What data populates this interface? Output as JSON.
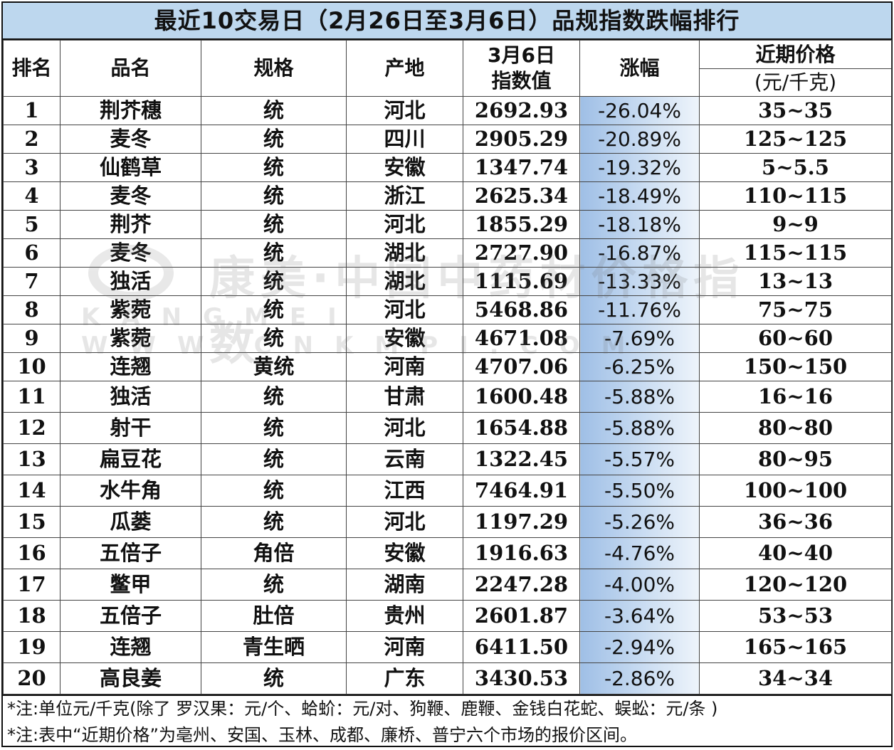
{
  "title": "最近10交易日（2月26日至3月6日）品规指数跌幅排行",
  "headers": {
    "rank": "排名",
    "name": "品名",
    "spec": "规格",
    "origin": "产地",
    "index_line1": "3月6日",
    "index_line2": "指数值",
    "change": "涨幅",
    "price_line1": "近期价格",
    "price_line2": "(元/千克)"
  },
  "rows": [
    {
      "rank": "1",
      "name": "荆芥穗",
      "spec": "统",
      "origin": "河北",
      "index": "2692.93",
      "change": "-26.04%",
      "price": "35~35"
    },
    {
      "rank": "2",
      "name": "麦冬",
      "spec": "统",
      "origin": "四川",
      "index": "2905.29",
      "change": "-20.89%",
      "price": "125~125"
    },
    {
      "rank": "3",
      "name": "仙鹤草",
      "spec": "统",
      "origin": "安徽",
      "index": "1347.74",
      "change": "-19.32%",
      "price": "5~5.5"
    },
    {
      "rank": "4",
      "name": "麦冬",
      "spec": "统",
      "origin": "浙江",
      "index": "2625.34",
      "change": "-18.49%",
      "price": "110~115"
    },
    {
      "rank": "5",
      "name": "荆芥",
      "spec": "统",
      "origin": "河北",
      "index": "1855.29",
      "change": "-18.18%",
      "price": "9~9"
    },
    {
      "rank": "6",
      "name": "麦冬",
      "spec": "统",
      "origin": "湖北",
      "index": "2727.90",
      "change": "-16.87%",
      "price": "115~115"
    },
    {
      "rank": "7",
      "name": "独活",
      "spec": "统",
      "origin": "湖北",
      "index": "1115.69",
      "change": "-13.33%",
      "price": "13~13"
    },
    {
      "rank": "8",
      "name": "紫菀",
      "spec": "统",
      "origin": "河北",
      "index": "5468.86",
      "change": "-11.76%",
      "price": "75~75"
    },
    {
      "rank": "9",
      "name": "紫菀",
      "spec": "统",
      "origin": "安徽",
      "index": "4671.08",
      "change": "-7.69%",
      "price": "60~60"
    },
    {
      "rank": "10",
      "name": "连翘",
      "spec": "黄统",
      "origin": "河南",
      "index": "4707.06",
      "change": "-6.25%",
      "price": "150~150"
    },
    {
      "rank": "11",
      "name": "独活",
      "spec": "统",
      "origin": "甘肃",
      "index": "1600.48",
      "change": "-5.88%",
      "price": "16~16"
    },
    {
      "rank": "12",
      "name": "射干",
      "spec": "统",
      "origin": "河北",
      "index": "1654.88",
      "change": "-5.88%",
      "price": "80~80"
    },
    {
      "rank": "13",
      "name": "扁豆花",
      "spec": "统",
      "origin": "云南",
      "index": "1322.45",
      "change": "-5.57%",
      "price": "80~95"
    },
    {
      "rank": "14",
      "name": "水牛角",
      "spec": "统",
      "origin": "江西",
      "index": "7464.91",
      "change": "-5.50%",
      "price": "100~100"
    },
    {
      "rank": "15",
      "name": "瓜蒌",
      "spec": "统",
      "origin": "河北",
      "index": "1197.29",
      "change": "-5.26%",
      "price": "36~36"
    },
    {
      "rank": "16",
      "name": "五倍子",
      "spec": "角倍",
      "origin": "安徽",
      "index": "1916.63",
      "change": "-4.76%",
      "price": "40~40"
    },
    {
      "rank": "17",
      "name": "鳖甲",
      "spec": "统",
      "origin": "湖南",
      "index": "2247.28",
      "change": "-4.00%",
      "price": "120~120"
    },
    {
      "rank": "18",
      "name": "五倍子",
      "spec": "肚倍",
      "origin": "贵州",
      "index": "2601.87",
      "change": "-3.64%",
      "price": "53~53"
    },
    {
      "rank": "19",
      "name": "连翘",
      "spec": "青生晒",
      "origin": "河南",
      "index": "6411.50",
      "change": "-2.94%",
      "price": "165~165"
    },
    {
      "rank": "20",
      "name": "高良姜",
      "spec": "统",
      "origin": "广东",
      "index": "3430.53",
      "change": "-2.86%",
      "price": "34~34"
    }
  ],
  "notes": [
    "*注:单位元/千克(除了 罗汉果：元/个、蛤蚧：元/对、狗鞭、鹿鞭、金钱白花蛇、蜈蚣：元/条 )",
    "*注:表中“近期价格”为亳州、安国、玉林、成都、廉桥、普宁六个市场的报价区间。"
  ],
  "watermark": {
    "text": "康美·中国中药材价格指数",
    "url": "KANGMEI WWW.CNKMPI.COM"
  }
}
